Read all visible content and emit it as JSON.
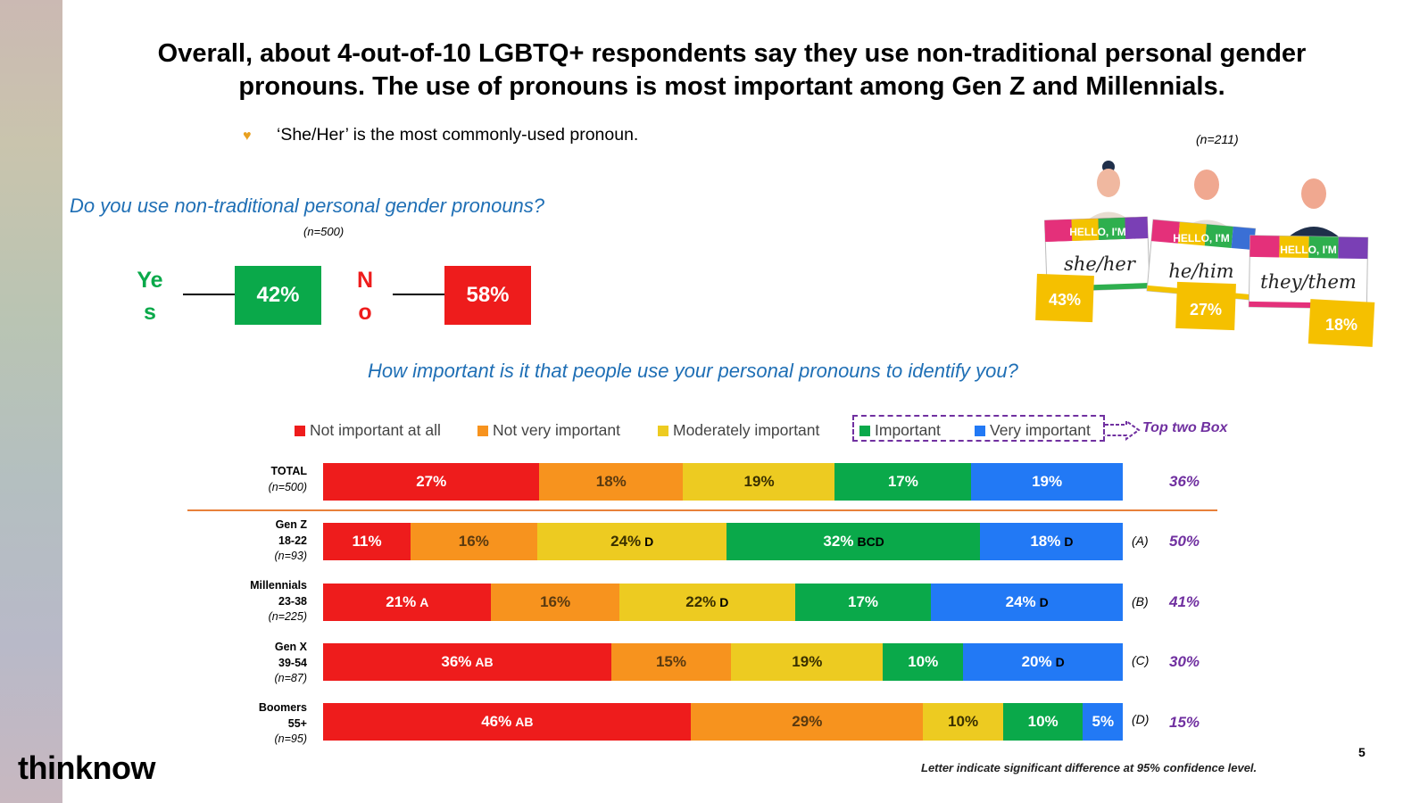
{
  "title": "Overall, about 4-out-of-10 LGBTQ+ respondents say they use non-traditional personal gender pronouns. The use of pronouns is most important among Gen Z and Millennials.",
  "bullet": "‘She/Her’ is the most commonly-used pronoun.",
  "question1": {
    "text": "Do you use non-traditional personal gender pronouns?",
    "n": "(n=500)",
    "yes_label": "Yes",
    "yes_value": "42%",
    "no_label": "No",
    "no_value": "58%"
  },
  "pronouns": {
    "n": "(n=211)",
    "header": "HELLO, I'M",
    "items": [
      {
        "pronoun": "she/her",
        "value": "43%"
      },
      {
        "pronoun": "he/him",
        "value": "27%"
      },
      {
        "pronoun": "they/them",
        "value": "18%"
      }
    ]
  },
  "question2": "How important is it that people use your personal pronouns to identify you?",
  "top_two_box_label": "Top two Box",
  "footnote": "Letter indicate significant difference at 95% confidence level.",
  "logo": "thinknow",
  "page_number": "5",
  "colors": {
    "not_important": "#ee1c1c",
    "not_very": "#f7931e",
    "moderately": "#edcb21",
    "important": "#0aa94a",
    "very": "#2279f5",
    "yes": "#0aa94a",
    "no": "#ee1c1c",
    "question": "#1f6fb5",
    "accent": "#7030a0"
  },
  "chart_data": {
    "type": "bar",
    "orientation": "horizontal-stacked-100",
    "title": "How important is it that people use your personal pronouns to identify you?",
    "legend": [
      "Not important at all",
      "Not very important",
      "Moderately important",
      "Important",
      "Very important"
    ],
    "rows": [
      {
        "name": "TOTAL",
        "sub": "",
        "n": "(n=500)",
        "letter": "",
        "top2": "36%",
        "values": [
          27,
          18,
          19,
          17,
          19
        ],
        "sig": [
          "",
          "",
          "",
          "",
          ""
        ]
      },
      {
        "name": "Gen Z",
        "sub": "18-22",
        "n": "(n=93)",
        "letter": "(A)",
        "top2": "50%",
        "values": [
          11,
          16,
          24,
          32,
          18
        ],
        "sig": [
          "",
          "",
          "D",
          "BCD",
          "D"
        ]
      },
      {
        "name": "Millennials",
        "sub": "23-38",
        "n": "(n=225)",
        "letter": "(B)",
        "top2": "41%",
        "values": [
          21,
          16,
          22,
          17,
          24
        ],
        "sig": [
          "A",
          "",
          "D",
          "",
          "D"
        ]
      },
      {
        "name": "Gen X",
        "sub": "39-54",
        "n": "(n=87)",
        "letter": "(C)",
        "top2": "30%",
        "values": [
          36,
          15,
          19,
          10,
          20
        ],
        "sig": [
          "AB",
          "",
          "",
          "",
          "D"
        ]
      },
      {
        "name": "Boomers",
        "sub": "55+",
        "n": "(n=95)",
        "letter": "(D)",
        "top2": "15%",
        "values": [
          46,
          29,
          10,
          10,
          5
        ],
        "sig": [
          "AB",
          "",
          "",
          "",
          ""
        ]
      }
    ]
  }
}
